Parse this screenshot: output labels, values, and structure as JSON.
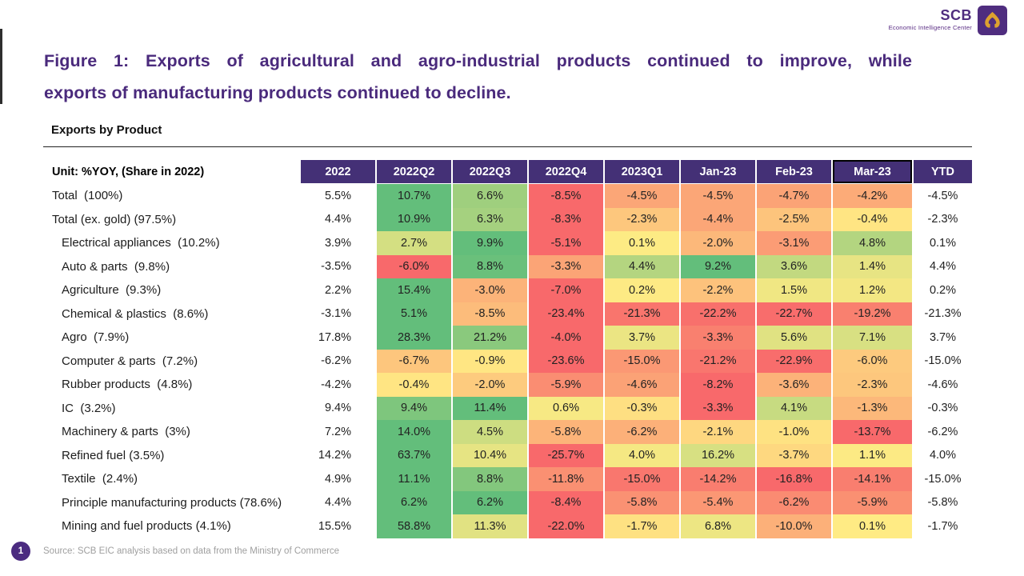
{
  "logo": {
    "brand": "SCB",
    "subtitle": "Economic Intelligence Center",
    "purple": "#4f2d7f",
    "gold": "#dda12f"
  },
  "title_lines": [
    "Figure 1: Exports of agricultural and agro-industrial products continued to improve, while",
    "exports of manufacturing products continued to decline."
  ],
  "page_number": "1",
  "source": "Source: SCB EIC analysis based on data from the Ministry of Commerce",
  "chart_data": {
    "type": "heatmap",
    "title": "Exports by Product",
    "unit_label": "Unit: %YOY, (Share in 2022)",
    "columns": [
      "2022",
      "2022Q2",
      "2022Q3",
      "2022Q4",
      "2023Q1",
      "Jan-23",
      "Feb-23",
      "Mar-23",
      "YTD"
    ],
    "highlighted_column": "Mar-23",
    "colored_column_indices": [
      1,
      2,
      3,
      4,
      5,
      6,
      7
    ],
    "color_scale": {
      "negative": "#F8696B",
      "zero": "#FFEB84",
      "positive": "#63BE7B",
      "midpoint": 0,
      "scope": "per-row min/max, yellow at zero"
    },
    "header_bg": "#443076",
    "value_format": "percent_1dp",
    "rows": [
      {
        "label": "Total",
        "share": "(100%)",
        "sep": "  ",
        "indent": 0,
        "values": [
          5.5,
          10.7,
          6.6,
          -8.5,
          -4.5,
          -4.5,
          -4.7,
          -4.2,
          -4.5
        ]
      },
      {
        "label": "Total (ex. gold)",
        "share": "(97.5%)",
        "sep": " ",
        "indent": 0,
        "values": [
          4.4,
          10.9,
          6.3,
          -8.3,
          -2.3,
          -4.4,
          -2.5,
          -0.4,
          -2.3
        ]
      },
      {
        "label": "Electrical appliances",
        "share": "(10.2%)",
        "sep": "  ",
        "indent": 1,
        "values": [
          3.9,
          2.7,
          9.9,
          -5.1,
          0.1,
          -2.0,
          -3.1,
          4.8,
          0.1
        ]
      },
      {
        "label": "Auto & parts",
        "share": "(9.8%)",
        "sep": "  ",
        "indent": 1,
        "values": [
          -3.5,
          -6.0,
          8.8,
          -3.3,
          4.4,
          9.2,
          3.6,
          1.4,
          4.4
        ]
      },
      {
        "label": "Agriculture",
        "share": "(9.3%)",
        "sep": "  ",
        "indent": 1,
        "values": [
          2.2,
          15.4,
          -3.0,
          -7.0,
          0.2,
          -2.2,
          1.5,
          1.2,
          0.2
        ]
      },
      {
        "label": "Chemical & plastics",
        "share": "(8.6%)",
        "sep": "  ",
        "indent": 1,
        "values": [
          -3.1,
          5.1,
          -8.5,
          -23.4,
          -21.3,
          -22.2,
          -22.7,
          -19.2,
          -21.3
        ]
      },
      {
        "label": "Agro",
        "share": "(7.9%)",
        "sep": "  ",
        "indent": 1,
        "values": [
          17.8,
          28.3,
          21.2,
          -4.0,
          3.7,
          -3.3,
          5.6,
          7.1,
          3.7
        ]
      },
      {
        "label": "Computer & parts",
        "share": "(7.2%)",
        "sep": "  ",
        "indent": 1,
        "values": [
          -6.2,
          -6.7,
          -0.9,
          -23.6,
          -15.0,
          -21.2,
          -22.9,
          -6.0,
          -15.0
        ]
      },
      {
        "label": "Rubber products",
        "share": "(4.8%)",
        "sep": "  ",
        "indent": 1,
        "values": [
          -4.2,
          -0.4,
          -2.0,
          -5.9,
          -4.6,
          -8.2,
          -3.6,
          -2.3,
          -4.6
        ]
      },
      {
        "label": "IC",
        "share": "(3.2%)",
        "sep": "  ",
        "indent": 1,
        "values": [
          9.4,
          9.4,
          11.4,
          0.6,
          -0.3,
          -3.3,
          4.1,
          -1.3,
          -0.3
        ]
      },
      {
        "label": "Machinery & parts",
        "share": "(3%)",
        "sep": "  ",
        "indent": 1,
        "values": [
          7.2,
          14.0,
          4.5,
          -5.8,
          -6.2,
          -2.1,
          -1.0,
          -13.7,
          -6.2
        ]
      },
      {
        "label": "Refined fuel",
        "share": "(3.5%)",
        "sep": " ",
        "indent": 1,
        "values": [
          14.2,
          63.7,
          10.4,
          -25.7,
          4.0,
          16.2,
          -3.7,
          1.1,
          4.0
        ]
      },
      {
        "label": "Textile",
        "share": "(2.4%)",
        "sep": "  ",
        "indent": 1,
        "values": [
          4.9,
          11.1,
          8.8,
          -11.8,
          -15.0,
          -14.2,
          -16.8,
          -14.1,
          -15.0
        ]
      },
      {
        "label": "Principle manufacturing products",
        "share": "(78.6%)",
        "sep": " ",
        "indent": 1,
        "values": [
          4.4,
          6.2,
          6.2,
          -8.4,
          -5.8,
          -5.4,
          -6.2,
          -5.9,
          -5.8
        ]
      },
      {
        "label": "Mining and fuel products",
        "share": "(4.1%)",
        "sep": " ",
        "indent": 1,
        "values": [
          15.5,
          58.8,
          11.3,
          -22.0,
          -1.7,
          6.8,
          -10.0,
          0.1,
          -1.7
        ]
      }
    ]
  }
}
